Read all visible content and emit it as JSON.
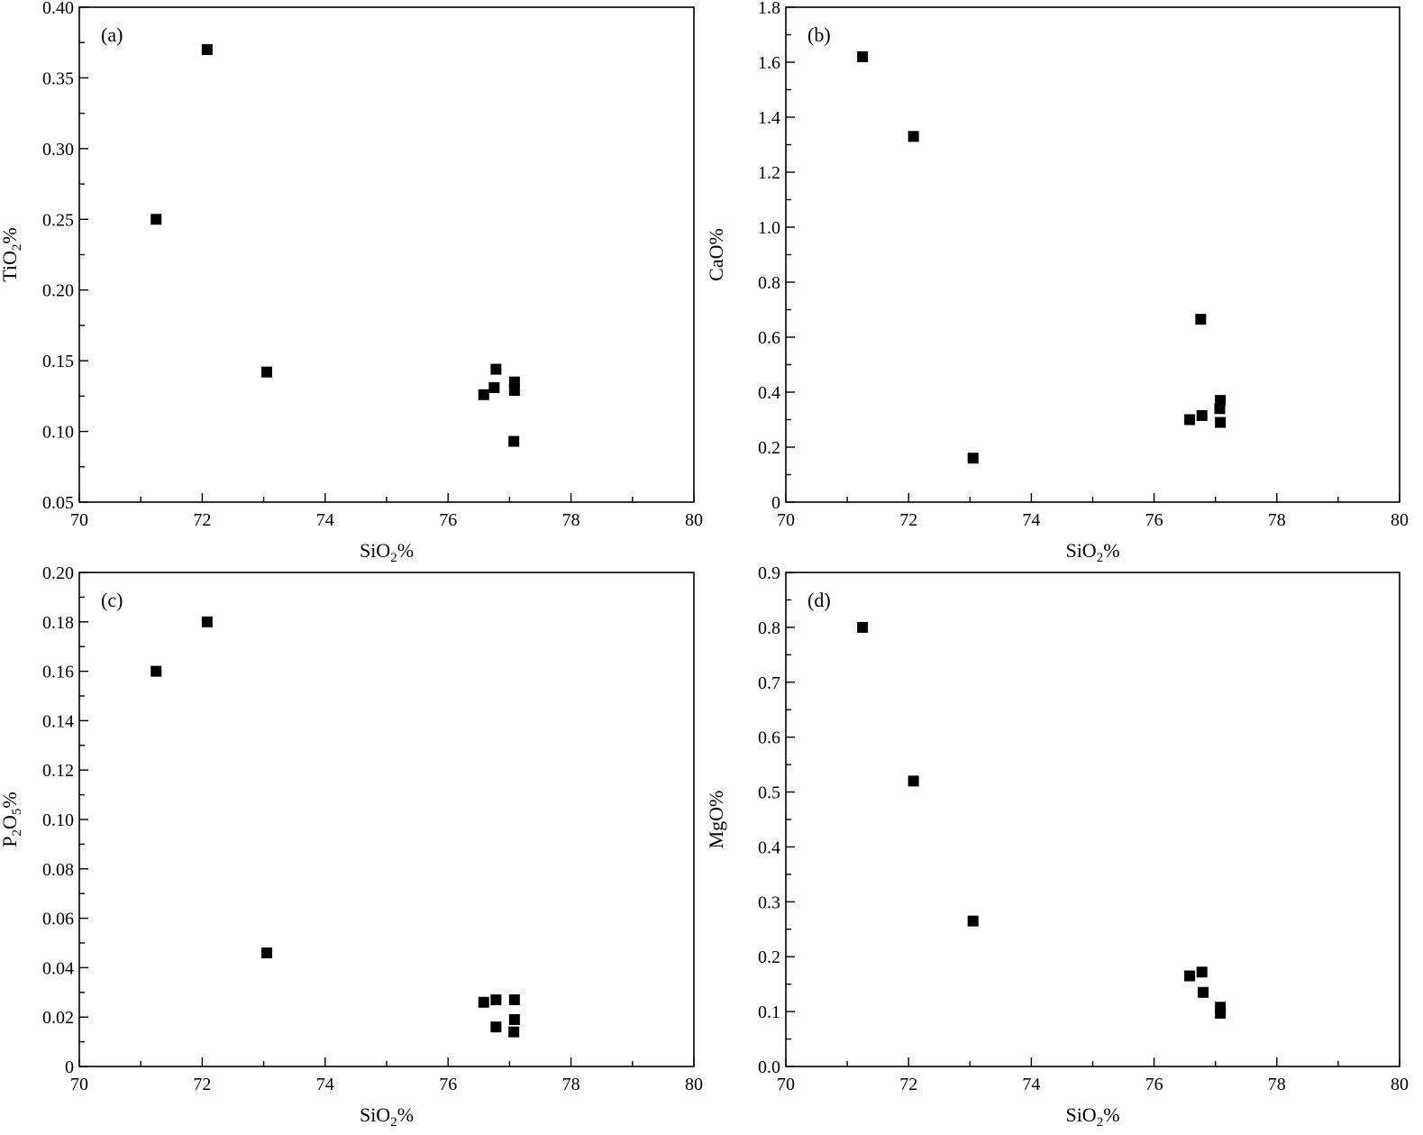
{
  "figure": {
    "background": "#ffffff",
    "marker_color": "#000000"
  },
  "chart_data": [
    {
      "type": "scatter",
      "panel_label": "(a)",
      "xlabel": "SiO₂%",
      "ylabel": "TiO₂%",
      "xlim": [
        70,
        80
      ],
      "ylim": [
        0.05,
        0.4
      ],
      "xticks": [
        "70",
        "72",
        "74",
        "76",
        "78",
        "80"
      ],
      "yticks": [
        "0.05",
        "0.10",
        "0.15",
        "0.20",
        "0.25",
        "0.30",
        "0.35",
        "0.40"
      ],
      "marker": "square",
      "points": [
        {
          "x": 71.25,
          "y": 0.25
        },
        {
          "x": 72.08,
          "y": 0.37
        },
        {
          "x": 73.05,
          "y": 0.142
        },
        {
          "x": 76.58,
          "y": 0.126
        },
        {
          "x": 76.75,
          "y": 0.131
        },
        {
          "x": 76.78,
          "y": 0.144
        },
        {
          "x": 77.08,
          "y": 0.135
        },
        {
          "x": 77.08,
          "y": 0.129
        },
        {
          "x": 77.07,
          "y": 0.093
        }
      ]
    },
    {
      "type": "scatter",
      "panel_label": "(b)",
      "xlabel": "SiO₂%",
      "ylabel": "CaO%",
      "xlim": [
        70,
        80
      ],
      "ylim": [
        0,
        1.8
      ],
      "xticks": [
        "70",
        "72",
        "74",
        "76",
        "78",
        "80"
      ],
      "yticks": [
        "0",
        "0.2",
        "0.4",
        "0.6",
        "0.8",
        "1.0",
        "1.2",
        "1.4",
        "1.6",
        "1.8"
      ],
      "marker": "square",
      "points": [
        {
          "x": 71.25,
          "y": 1.62
        },
        {
          "x": 72.08,
          "y": 1.33
        },
        {
          "x": 73.05,
          "y": 0.16
        },
        {
          "x": 76.58,
          "y": 0.3
        },
        {
          "x": 76.78,
          "y": 0.315
        },
        {
          "x": 76.76,
          "y": 0.665
        },
        {
          "x": 77.08,
          "y": 0.37
        },
        {
          "x": 77.07,
          "y": 0.34
        },
        {
          "x": 77.08,
          "y": 0.29
        }
      ]
    },
    {
      "type": "scatter",
      "panel_label": "(c)",
      "xlabel": "SiO₂%",
      "ylabel": "P₂O₅%",
      "xlim": [
        70,
        80
      ],
      "ylim": [
        0,
        0.2
      ],
      "xticks": [
        "70",
        "72",
        "74",
        "76",
        "78",
        "80"
      ],
      "yticks": [
        "0",
        "0.02",
        "0.04",
        "0.06",
        "0.08",
        "0.10",
        "0.12",
        "0.14",
        "0.16",
        "0.18",
        "0.20"
      ],
      "marker": "square",
      "points": [
        {
          "x": 71.25,
          "y": 0.16
        },
        {
          "x": 72.08,
          "y": 0.18
        },
        {
          "x": 73.05,
          "y": 0.046
        },
        {
          "x": 76.58,
          "y": 0.026
        },
        {
          "x": 76.78,
          "y": 0.027
        },
        {
          "x": 76.78,
          "y": 0.016
        },
        {
          "x": 77.08,
          "y": 0.027
        },
        {
          "x": 77.08,
          "y": 0.019
        },
        {
          "x": 77.07,
          "y": 0.014
        }
      ]
    },
    {
      "type": "scatter",
      "panel_label": "(d)",
      "xlabel": "SiO₂%",
      "ylabel": "MgO%",
      "xlim": [
        70,
        80
      ],
      "ylim": [
        0,
        0.9
      ],
      "xticks": [
        "70",
        "72",
        "74",
        "76",
        "78",
        "80"
      ],
      "yticks": [
        "0.0",
        "0.1",
        "0.2",
        "0.3",
        "0.4",
        "0.5",
        "0.6",
        "0.7",
        "0.8",
        "0.9"
      ],
      "marker": "square",
      "points": [
        {
          "x": 71.25,
          "y": 0.8
        },
        {
          "x": 72.08,
          "y": 0.52
        },
        {
          "x": 73.05,
          "y": 0.265
        },
        {
          "x": 76.58,
          "y": 0.165
        },
        {
          "x": 76.78,
          "y": 0.172
        },
        {
          "x": 76.8,
          "y": 0.135
        },
        {
          "x": 77.08,
          "y": 0.108
        },
        {
          "x": 77.08,
          "y": 0.097
        }
      ]
    }
  ]
}
